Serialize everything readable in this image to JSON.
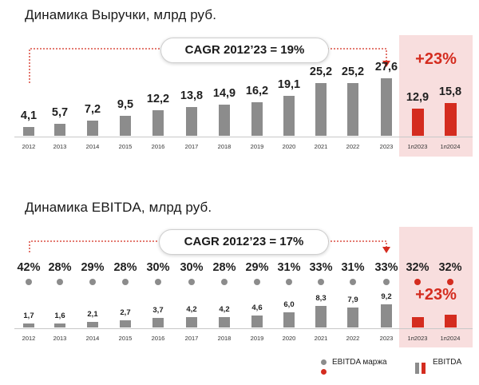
{
  "chart_data": [
    {
      "type": "bar",
      "title": "Динамика Выручки, млрд руб.",
      "categories": [
        "2012",
        "2013",
        "2014",
        "2015",
        "2016",
        "2017",
        "2018",
        "2019",
        "2020",
        "2021",
        "2022",
        "2023",
        "1п2023",
        "1п2024"
      ],
      "values": [
        4.1,
        5.7,
        7.2,
        9.5,
        12.2,
        13.8,
        14.9,
        16.2,
        19.1,
        25.2,
        25.2,
        27.6,
        12.9,
        15.8
      ],
      "value_labels": [
        "4,1",
        "5,7",
        "7,2",
        "9,5",
        "12,2",
        "13,8",
        "14,9",
        "16,2",
        "19,1",
        "25,2",
        "25,2",
        "27,6",
        "12,9",
        "15,8"
      ],
      "highlight_categories": [
        "1п2023",
        "1п2024"
      ],
      "annotations": {
        "cagr": "CAGR 2012’23 = 19%",
        "growth": "+23%"
      },
      "colors": {
        "bar": "#8c8c8c",
        "highlight": "#d42c1f",
        "panel": "#f8dede"
      },
      "grid": false
    },
    {
      "type": "bar",
      "title": "Динамика EBITDA, млрд руб.",
      "categories": [
        "2012",
        "2013",
        "2014",
        "2015",
        "2016",
        "2017",
        "2018",
        "2019",
        "2020",
        "2021",
        "2022",
        "2023",
        "1п2023",
        "1п2024"
      ],
      "values": [
        1.7,
        1.6,
        2.1,
        2.7,
        3.7,
        4.2,
        4.2,
        4.6,
        6.0,
        8.3,
        7.9,
        9.2,
        4.2,
        5.1
      ],
      "value_labels": [
        "1,7",
        "1,6",
        "2,1",
        "2,7",
        "3,7",
        "4,2",
        "4,2",
        "4,6",
        "6,0",
        "8,3",
        "7,9",
        "9,2",
        "",
        ""
      ],
      "margin_labels": [
        "42%",
        "28%",
        "29%",
        "28%",
        "30%",
        "30%",
        "28%",
        "29%",
        "31%",
        "33%",
        "31%",
        "33%",
        "32%",
        "32%"
      ],
      "highlight_categories": [
        "1п2023",
        "1п2024"
      ],
      "annotations": {
        "cagr": "CAGR 2012’23 = 17%",
        "growth": "+23%"
      },
      "legend": [
        "EBITDA маржа",
        "EBITDA"
      ],
      "legend_position": "bottom-right",
      "colors": {
        "bar": "#8c8c8c",
        "highlight": "#d42c1f",
        "panel": "#f8dede"
      },
      "grid": false
    }
  ]
}
